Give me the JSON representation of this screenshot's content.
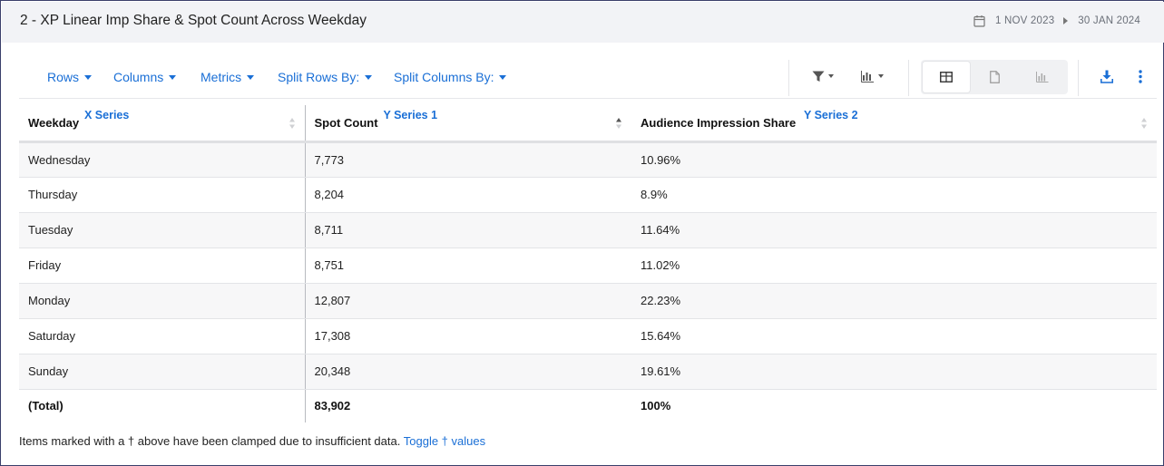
{
  "header": {
    "title": "2 - XP Linear Imp Share & Spot Count Across Weekday",
    "date_start": "1 NOV 2023",
    "date_end": "30 JAN 2024"
  },
  "toolbar": {
    "rows_label": "Rows",
    "columns_label": "Columns",
    "metrics_label": "Metrics",
    "split_rows_label": "Split Rows By:",
    "split_columns_label": "Split Columns By:",
    "icons": [
      "filter-icon",
      "chart-type-icon",
      "table-view-icon",
      "document-view-icon",
      "chart-view-icon",
      "download-icon",
      "more-options-icon"
    ]
  },
  "table": {
    "columns": [
      {
        "label": "Weekday",
        "series": "X Series"
      },
      {
        "label": "Spot Count",
        "series": "Y Series 1"
      },
      {
        "label": "Audience Impression Share",
        "series": "Y Series 2"
      }
    ],
    "rows": [
      {
        "weekday": "Wednesday",
        "spot_count": "7,773",
        "share": "10.96%"
      },
      {
        "weekday": "Thursday",
        "spot_count": "8,204",
        "share": "8.9%"
      },
      {
        "weekday": "Tuesday",
        "spot_count": "8,711",
        "share": "11.64%"
      },
      {
        "weekday": "Friday",
        "spot_count": "8,751",
        "share": "11.02%"
      },
      {
        "weekday": "Monday",
        "spot_count": "12,807",
        "share": "22.23%"
      },
      {
        "weekday": "Saturday",
        "spot_count": "17,308",
        "share": "15.64%"
      },
      {
        "weekday": "Sunday",
        "spot_count": "20,348",
        "share": "19.61%"
      }
    ],
    "total": {
      "weekday": "(Total)",
      "spot_count": "83,902",
      "share": "100%"
    }
  },
  "footnote": {
    "text": "Items marked with a † above have been clamped due to insufficient data.",
    "link": "Toggle † values"
  },
  "colors": {
    "accent": "#1a6fd6",
    "border": "#3a3f6a",
    "header_bg": "#f2f3f6"
  }
}
